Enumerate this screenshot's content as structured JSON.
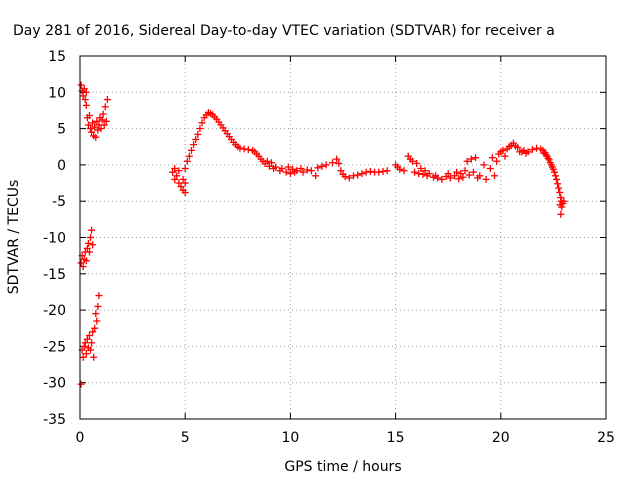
{
  "chart_data": {
    "type": "scatter",
    "title": "Day 281 of 2016, Sidereal Day-to-day VTEC variation (SDTVAR) for receiver a",
    "xlabel": "GPS time / hours",
    "ylabel": "SDTVAR / TECUs",
    "xlim": [
      0,
      25
    ],
    "ylim": [
      -35,
      15
    ],
    "xticks": [
      "0",
      "5",
      "10",
      "15",
      "20",
      "25"
    ],
    "yticks": [
      "15",
      "10",
      "5",
      "0",
      "-5",
      "-10",
      "-15",
      "-20",
      "-25",
      "-30",
      "-35"
    ],
    "grid": true,
    "marker": "+",
    "colors": {
      "series": "#ff0000"
    },
    "series": [
      {
        "name": "SDTVAR",
        "points": [
          [
            0.05,
            11.0
          ],
          [
            0.1,
            10.2
          ],
          [
            0.15,
            9.5
          ],
          [
            0.2,
            10.5
          ],
          [
            0.25,
            9.0
          ],
          [
            0.3,
            8.2
          ],
          [
            0.3,
            10.0
          ],
          [
            0.35,
            6.5
          ],
          [
            0.4,
            5.5
          ],
          [
            0.45,
            6.8
          ],
          [
            0.5,
            5.0
          ],
          [
            0.55,
            4.5
          ],
          [
            0.6,
            5.8
          ],
          [
            0.65,
            4.0
          ],
          [
            0.7,
            5.2
          ],
          [
            0.75,
            3.8
          ],
          [
            0.8,
            6.0
          ],
          [
            0.85,
            4.8
          ],
          [
            0.9,
            5.5
          ],
          [
            0.95,
            6.5
          ],
          [
            1.0,
            5.0
          ],
          [
            1.05,
            6.2
          ],
          [
            1.1,
            7.0
          ],
          [
            1.15,
            5.5
          ],
          [
            1.2,
            8.0
          ],
          [
            1.25,
            6.0
          ],
          [
            1.3,
            9.0
          ],
          [
            0.05,
            -13.5
          ],
          [
            0.1,
            -12.5
          ],
          [
            0.15,
            -14.0
          ],
          [
            0.2,
            -13.0
          ],
          [
            0.25,
            -12.0
          ],
          [
            0.3,
            -13.2
          ],
          [
            0.35,
            -11.5
          ],
          [
            0.4,
            -10.8
          ],
          [
            0.45,
            -12.0
          ],
          [
            0.5,
            -10.0
          ],
          [
            0.55,
            -9.0
          ],
          [
            0.6,
            -11.0
          ],
          [
            0.05,
            -30.2
          ],
          [
            0.1,
            -25.5
          ],
          [
            0.15,
            -26.5
          ],
          [
            0.2,
            -25.0
          ],
          [
            0.25,
            -24.5
          ],
          [
            0.3,
            -26.0
          ],
          [
            0.35,
            -24.0
          ],
          [
            0.4,
            -25.2
          ],
          [
            0.45,
            -23.5
          ],
          [
            0.5,
            -25.5
          ],
          [
            0.55,
            -24.5
          ],
          [
            0.6,
            -23.0
          ],
          [
            0.65,
            -26.5
          ],
          [
            0.7,
            -22.5
          ],
          [
            0.75,
            -20.5
          ],
          [
            0.8,
            -21.5
          ],
          [
            0.85,
            -19.5
          ],
          [
            0.9,
            -18.0
          ],
          [
            4.4,
            -1.0
          ],
          [
            4.5,
            -0.5
          ],
          [
            4.5,
            -2.0
          ],
          [
            4.6,
            -1.5
          ],
          [
            4.7,
            -2.5
          ],
          [
            4.7,
            -0.8
          ],
          [
            4.8,
            -3.0
          ],
          [
            4.9,
            -2.0
          ],
          [
            4.9,
            -3.5
          ],
          [
            5.0,
            -2.5
          ],
          [
            5.0,
            -0.5
          ],
          [
            5.0,
            -3.8
          ],
          [
            5.1,
            0.5
          ],
          [
            5.2,
            1.2
          ],
          [
            5.3,
            2.0
          ],
          [
            5.4,
            2.8
          ],
          [
            5.5,
            3.5
          ],
          [
            5.6,
            4.2
          ],
          [
            5.7,
            5.0
          ],
          [
            5.8,
            5.8
          ],
          [
            5.9,
            6.5
          ],
          [
            6.0,
            6.9
          ],
          [
            6.1,
            7.2
          ],
          [
            6.2,
            7.1
          ],
          [
            6.3,
            6.9
          ],
          [
            6.4,
            6.6
          ],
          [
            6.5,
            6.3
          ],
          [
            6.6,
            5.9
          ],
          [
            6.7,
            5.5
          ],
          [
            6.8,
            5.1
          ],
          [
            6.9,
            4.7
          ],
          [
            7.0,
            4.3
          ],
          [
            7.1,
            3.9
          ],
          [
            7.2,
            3.5
          ],
          [
            7.3,
            3.1
          ],
          [
            7.4,
            2.8
          ],
          [
            7.5,
            2.5
          ],
          [
            7.6,
            2.3
          ],
          [
            7.8,
            2.2
          ],
          [
            8.0,
            2.1
          ],
          [
            8.2,
            2.0
          ],
          [
            8.3,
            1.8
          ],
          [
            8.4,
            1.5
          ],
          [
            8.5,
            1.2
          ],
          [
            8.6,
            0.8
          ],
          [
            8.7,
            0.5
          ],
          [
            8.8,
            0.2
          ],
          [
            8.9,
            0.5
          ],
          [
            9.0,
            -0.2
          ],
          [
            9.1,
            0.3
          ],
          [
            9.2,
            -0.5
          ],
          [
            9.3,
            -0.3
          ],
          [
            9.5,
            -0.8
          ],
          [
            9.6,
            -0.5
          ],
          [
            9.8,
            -1.0
          ],
          [
            9.9,
            -0.3
          ],
          [
            10.0,
            -1.2
          ],
          [
            10.1,
            -0.6
          ],
          [
            10.2,
            -1.0
          ],
          [
            10.3,
            -0.8
          ],
          [
            10.5,
            -0.5
          ],
          [
            10.6,
            -1.0
          ],
          [
            10.8,
            -0.7
          ],
          [
            11.0,
            -0.8
          ],
          [
            11.2,
            -1.5
          ],
          [
            11.3,
            -0.4
          ],
          [
            11.5,
            -0.2
          ],
          [
            11.7,
            0.0
          ],
          [
            12.0,
            0.3
          ],
          [
            12.2,
            0.8
          ],
          [
            12.3,
            0.2
          ],
          [
            12.4,
            -0.8
          ],
          [
            12.5,
            -1.3
          ],
          [
            12.6,
            -1.6
          ],
          [
            12.8,
            -1.8
          ],
          [
            13.0,
            -1.5
          ],
          [
            13.2,
            -1.4
          ],
          [
            13.4,
            -1.2
          ],
          [
            13.6,
            -1.0
          ],
          [
            13.8,
            -0.9
          ],
          [
            14.0,
            -1.0
          ],
          [
            14.2,
            -1.0
          ],
          [
            14.4,
            -0.9
          ],
          [
            14.6,
            -0.8
          ],
          [
            15.0,
            0.0
          ],
          [
            15.1,
            -0.3
          ],
          [
            15.2,
            -0.6
          ],
          [
            15.4,
            -0.8
          ],
          [
            15.6,
            1.2
          ],
          [
            15.7,
            0.8
          ],
          [
            15.8,
            0.5
          ],
          [
            15.9,
            -1.0
          ],
          [
            16.0,
            0.2
          ],
          [
            16.1,
            -1.2
          ],
          [
            16.2,
            -0.5
          ],
          [
            16.3,
            -1.3
          ],
          [
            16.4,
            -0.8
          ],
          [
            16.5,
            -1.5
          ],
          [
            16.6,
            -1.2
          ],
          [
            16.8,
            -1.7
          ],
          [
            16.9,
            -1.5
          ],
          [
            17.0,
            -1.8
          ],
          [
            17.2,
            -2.0
          ],
          [
            17.4,
            -1.6
          ],
          [
            17.5,
            -1.2
          ],
          [
            17.6,
            -1.8
          ],
          [
            17.8,
            -1.5
          ],
          [
            17.9,
            -1.0
          ],
          [
            18.0,
            -1.9
          ],
          [
            18.1,
            -1.2
          ],
          [
            18.2,
            -1.7
          ],
          [
            18.3,
            -0.8
          ],
          [
            18.4,
            0.5
          ],
          [
            18.5,
            -1.4
          ],
          [
            18.6,
            0.8
          ],
          [
            18.7,
            -1.0
          ],
          [
            18.8,
            1.0
          ],
          [
            18.9,
            -1.8
          ],
          [
            19.0,
            -1.5
          ],
          [
            19.2,
            0.0
          ],
          [
            19.3,
            -2.0
          ],
          [
            19.5,
            -0.5
          ],
          [
            19.6,
            1.0
          ],
          [
            19.7,
            -1.5
          ],
          [
            19.8,
            0.5
          ],
          [
            19.9,
            1.5
          ],
          [
            20.0,
            1.8
          ],
          [
            20.1,
            2.0
          ],
          [
            20.2,
            1.2
          ],
          [
            20.3,
            2.2
          ],
          [
            20.4,
            2.5
          ],
          [
            20.5,
            2.7
          ],
          [
            20.6,
            3.0
          ],
          [
            20.7,
            2.6
          ],
          [
            20.8,
            2.4
          ],
          [
            20.9,
            1.8
          ],
          [
            21.0,
            1.8
          ],
          [
            21.1,
            2.0
          ],
          [
            21.2,
            1.6
          ],
          [
            21.3,
            1.8
          ],
          [
            21.5,
            2.1
          ],
          [
            21.7,
            2.3
          ],
          [
            21.9,
            2.2
          ],
          [
            22.0,
            2.0
          ],
          [
            22.05,
            1.6
          ],
          [
            22.1,
            1.7
          ],
          [
            22.15,
            1.4
          ],
          [
            22.2,
            1.2
          ],
          [
            22.25,
            0.9
          ],
          [
            22.3,
            0.7
          ],
          [
            22.35,
            0.3
          ],
          [
            22.4,
            0.0
          ],
          [
            22.45,
            -0.3
          ],
          [
            22.5,
            -0.6
          ],
          [
            22.55,
            -1.0
          ],
          [
            22.6,
            -1.5
          ],
          [
            22.65,
            -2.0
          ],
          [
            22.7,
            -2.6
          ],
          [
            22.75,
            -3.2
          ],
          [
            22.8,
            -3.8
          ],
          [
            22.82,
            -5.5
          ],
          [
            22.85,
            -4.5
          ],
          [
            22.85,
            -6.8
          ],
          [
            22.88,
            -5.0
          ],
          [
            22.9,
            -5.8
          ],
          [
            22.95,
            -5.3
          ],
          [
            23.0,
            -5.0
          ]
        ]
      }
    ]
  }
}
